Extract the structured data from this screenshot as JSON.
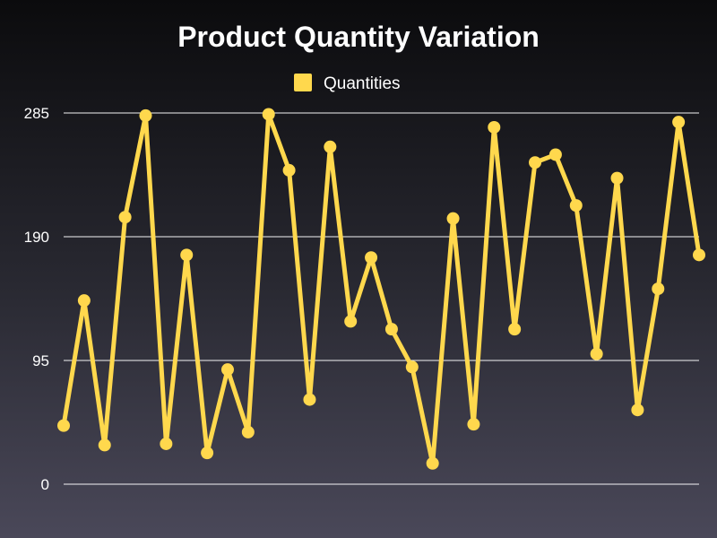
{
  "chart_data": {
    "type": "line",
    "title": "Product Quantity Variation",
    "series": [
      {
        "name": "Quantities",
        "color": "#FFD84D",
        "values": [
          45,
          141,
          30,
          205,
          283,
          31,
          176,
          24,
          88,
          40,
          284,
          241,
          65,
          259,
          125,
          174,
          119,
          90,
          16,
          204,
          46,
          274,
          119,
          247,
          253,
          214,
          100,
          235,
          57,
          150,
          278,
          176
        ]
      }
    ],
    "yticks": [
      "0",
      "95",
      "190",
      "285"
    ],
    "ylim": [
      0,
      285
    ],
    "grid": true,
    "legend_position": "top-center"
  }
}
